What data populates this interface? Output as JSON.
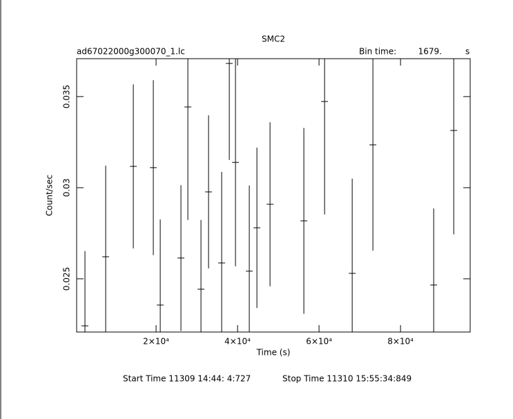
{
  "chart_data": {
    "type": "errorbar",
    "title": "SMC2",
    "file_name": "ad67022000g300070_1.lc",
    "bin_time_label": "Bin time:",
    "bin_time": {
      "value": 1679,
      "label": "1679."
    },
    "bin_time_unit": "s",
    "x_label": "Time (s)",
    "y_label": "Count/sec",
    "start_time": "Start Time 11309 14:44: 4:727",
    "stop_time": "Stop Time 11310 15:55:34:849",
    "color": "#000000",
    "x": [
      2540,
      7630,
      14410,
      19320,
      21020,
      26100,
      27800,
      31020,
      32880,
      36100,
      37970,
      39490,
      42880,
      44750,
      47970,
      56270,
      61360,
      68140,
      73220,
      88140,
      93060
    ],
    "values": [
      0.02242,
      0.02621,
      0.03117,
      0.0311,
      0.02356,
      0.02614,
      0.03443,
      0.02443,
      0.02977,
      0.02587,
      0.03682,
      0.03139,
      0.02542,
      0.0278,
      0.02909,
      0.02818,
      0.03473,
      0.0253,
      0.03235,
      0.02466,
      0.03314
    ],
    "errors": [
      0.0041,
      0.005,
      0.0045,
      0.0048,
      0.0047,
      0.004,
      0.0062,
      0.0038,
      0.0042,
      0.005,
      0.0053,
      0.0057,
      0.0047,
      0.0044,
      0.0045,
      0.0051,
      0.0062,
      0.0052,
      0.0058,
      0.0042,
      0.0057
    ],
    "xlim": [
      500,
      97100
    ],
    "ylim": [
      0.02208,
      0.03708
    ],
    "xticks": [
      {
        "value": 20000,
        "label": "2×10⁴"
      },
      {
        "value": 40000,
        "label": "4×10⁴"
      },
      {
        "value": 60000,
        "label": "6×10⁴"
      },
      {
        "value": 80000,
        "label": "8×10⁴"
      }
    ],
    "yticks": [
      0.025,
      0.03,
      0.035
    ]
  }
}
